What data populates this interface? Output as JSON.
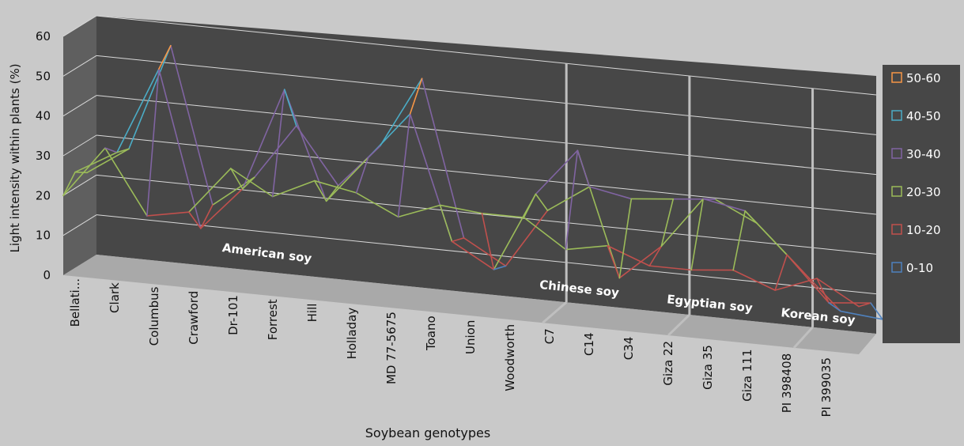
{
  "chart_data": {
    "type": "surface",
    "title": "",
    "xlabel": "Soybean genotypes",
    "ylabel": "Light intensity within plants (%)",
    "ylim": [
      0,
      60
    ],
    "y_ticks": [
      "0",
      "10",
      "20",
      "30",
      "40",
      "50",
      "60"
    ],
    "categories": [
      "Bellati...",
      "Clark",
      "Columbus",
      "Crawford",
      "Dr-101",
      "Forrest",
      "Hill",
      "Holladay",
      "MD 77-5675",
      "Toano",
      "Union",
      "Woodworth",
      "C7",
      "C14",
      "C34",
      "Giza 22",
      "Giza 35",
      "Giza 111",
      "PI 398408",
      "PI 399035"
    ],
    "depth_series": [
      {
        "values": [
          20,
          33,
          17,
          19,
          31,
          25,
          30,
          28,
          23,
          27,
          26,
          26,
          19,
          21,
          17,
          17,
          18,
          14,
          18,
          12
        ]
      },
      {
        "values": [
          24,
          30,
          52,
          13,
          24,
          50,
          23,
          35,
          47,
          16,
          10,
          30,
          42,
          11,
          20,
          33,
          31,
          21,
          10,
          11
        ]
      },
      {
        "values": [
          22,
          29,
          56,
          17,
          25,
          39,
          25,
          36,
          54,
          15,
          9,
          24,
          31,
          29,
          30,
          31,
          26,
          16,
          6,
          5
        ]
      }
    ],
    "bands": [
      "50-60",
      "40-50",
      "30-40",
      "20-30",
      "10-20",
      "0-10"
    ],
    "band_colors": [
      "#f79646",
      "#4bacc6",
      "#8064a2",
      "#9bbb59",
      "#c0504d",
      "#4f81bd"
    ],
    "groups": [
      {
        "label": "American soy",
        "from": 0,
        "to": 11
      },
      {
        "label": "Chinese soy",
        "from": 12,
        "to": 14
      },
      {
        "label": "Egyptian soy",
        "from": 15,
        "to": 17
      },
      {
        "label": "Korean soy",
        "from": 18,
        "to": 19
      }
    ],
    "legend_position": "right",
    "grid": true
  }
}
